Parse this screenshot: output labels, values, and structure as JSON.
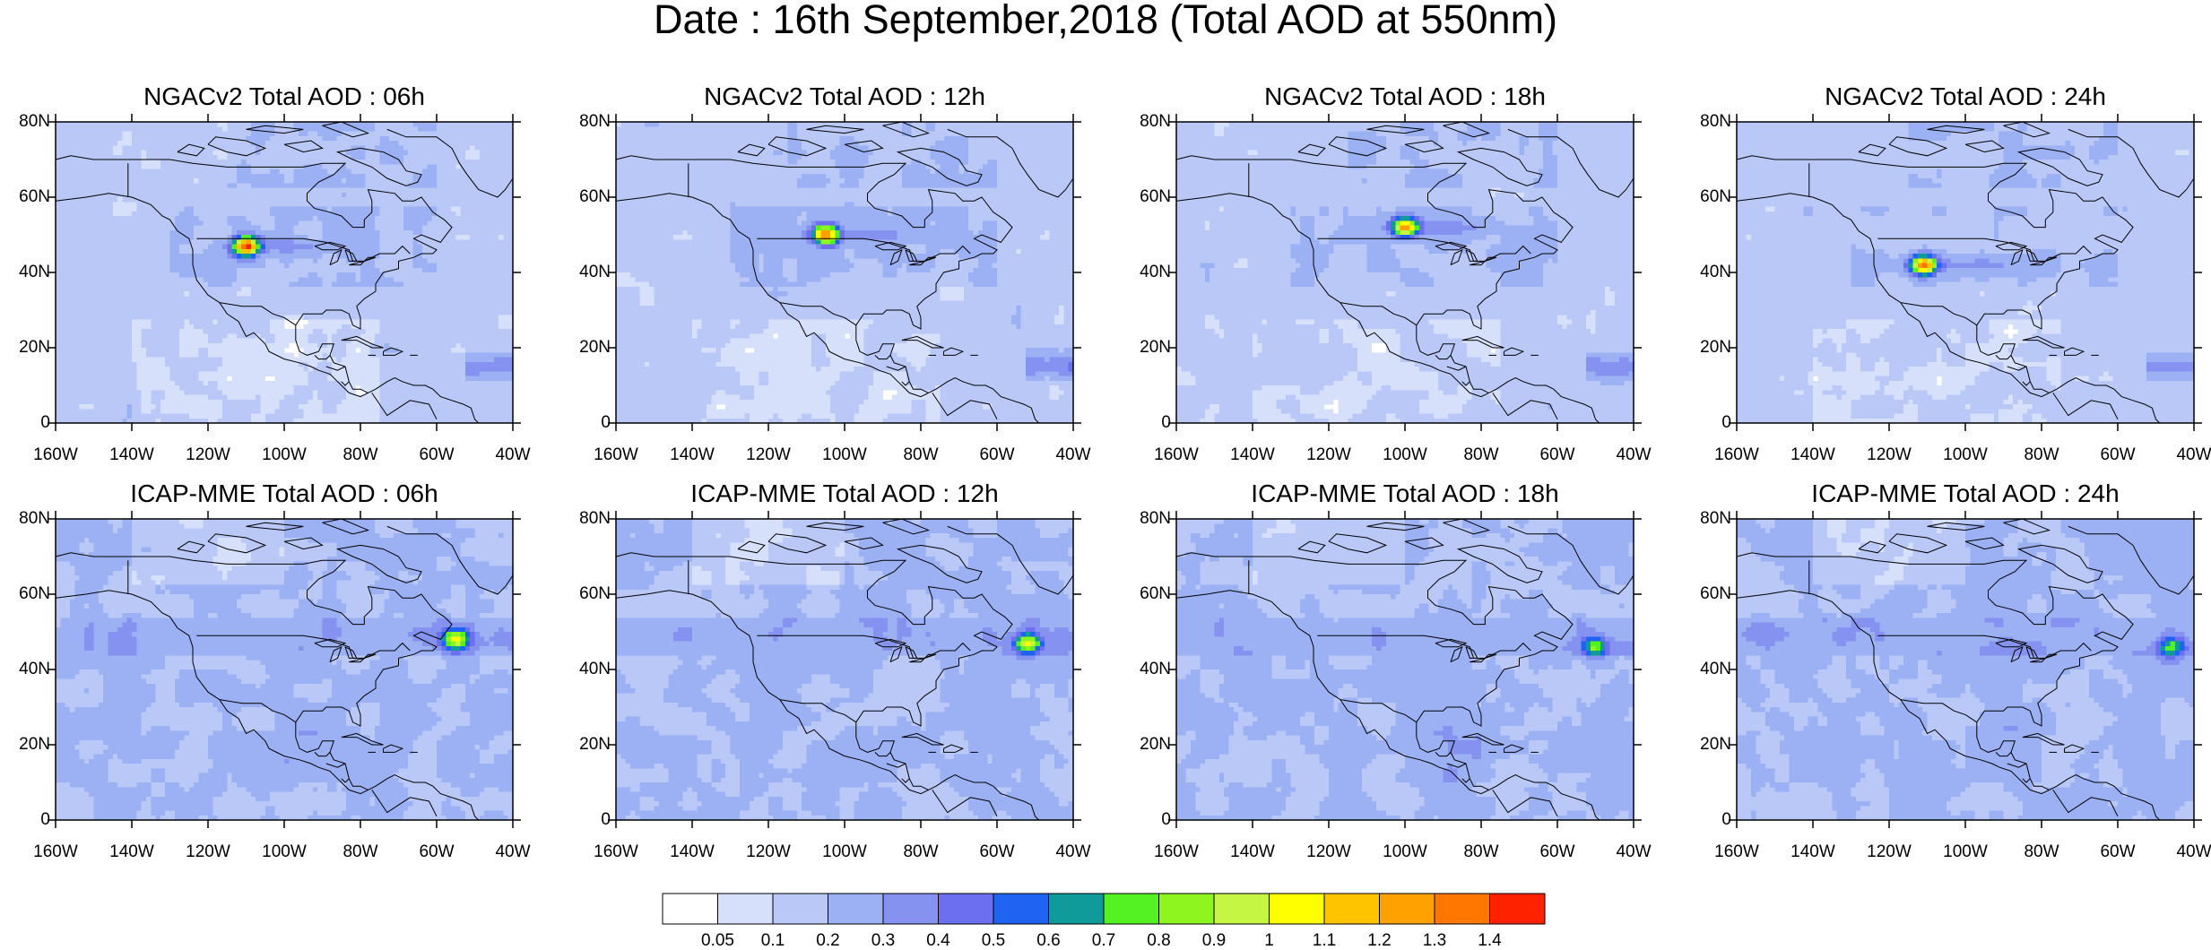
{
  "title": "Date : 16th September,2018 (Total AOD at 550nm)",
  "colors": {
    "land_line": "#000000",
    "frame": "#000000",
    "background_aod": "#ffffff"
  },
  "lat_labels": [
    "80N",
    "60N",
    "40N",
    "20N",
    "0"
  ],
  "lon_labels": [
    "160W",
    "140W",
    "120W",
    "100W",
    "80W",
    "60W",
    "40W"
  ],
  "panels": [
    {
      "title": "NGACv2 Total AOD : 06h",
      "model": "NGACv2",
      "hour": "06h",
      "plume_lat": 47,
      "plume_lon": -110,
      "plume_strength": 1.15
    },
    {
      "title": "NGACv2 Total AOD : 12h",
      "model": "NGACv2",
      "hour": "12h",
      "plume_lat": 50,
      "plume_lon": -105,
      "plume_strength": 1.1
    },
    {
      "title": "NGACv2 Total AOD : 18h",
      "model": "NGACv2",
      "hour": "18h",
      "plume_lat": 52,
      "plume_lon": -100,
      "plume_strength": 1.0
    },
    {
      "title": "NGACv2 Total AOD : 24h",
      "model": "NGACv2",
      "hour": "24h",
      "plume_lat": 42,
      "plume_lon": -111,
      "plume_strength": 1.05
    },
    {
      "title": "ICAP-MME Total AOD : 06h",
      "model": "ICAP-MME",
      "hour": "06h",
      "plume_lat": 48,
      "plume_lon": -55,
      "plume_strength": 0.7
    },
    {
      "title": "ICAP-MME Total AOD : 12h",
      "model": "ICAP-MME",
      "hour": "12h",
      "plume_lat": 47,
      "plume_lon": -52,
      "plume_strength": 0.7
    },
    {
      "title": "ICAP-MME Total AOD : 18h",
      "model": "ICAP-MME",
      "hour": "18h",
      "plume_lat": 46,
      "plume_lon": -50,
      "plume_strength": 0.5
    },
    {
      "title": "ICAP-MME Total AOD : 24h",
      "model": "ICAP-MME",
      "hour": "24h",
      "plume_lat": 46,
      "plume_lon": -46,
      "plume_strength": 0.45
    }
  ],
  "colorbar": {
    "labels": [
      "0.05",
      "0.1",
      "0.2",
      "0.3",
      "0.4",
      "0.5",
      "0.6",
      "0.7",
      "0.8",
      "0.9",
      "1",
      "1.1",
      "1.2",
      "1.3",
      "1.4"
    ],
    "colors": [
      "#ffffff",
      "#d6e0fb",
      "#b9c8f7",
      "#9cb0f4",
      "#8592ef",
      "#6b6ff0",
      "#1f63f2",
      "#0f9b99",
      "#55f223",
      "#8ef51f",
      "#c5f644",
      "#ffff00",
      "#ffc400",
      "#ffa100",
      "#ff7700",
      "#ff2200"
    ]
  }
}
